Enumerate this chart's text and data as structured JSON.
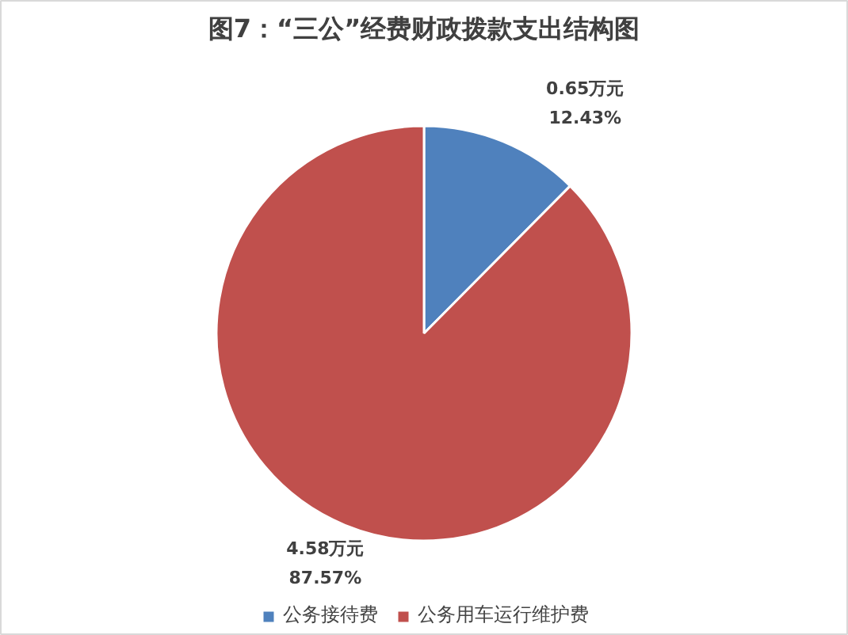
{
  "chart_data": {
    "type": "pie",
    "title": "图7：“三公”经费财政拨款支出结构图",
    "categories": [
      "公务接待费",
      "公务用车运行维护费"
    ],
    "values": [
      0.65,
      4.58
    ],
    "colors": [
      "#4f81bd",
      "#c0504d"
    ],
    "value_labels": [
      "0.65万元\n12.43%",
      "4.58万元\n87.57%"
    ],
    "legend": "bottom"
  }
}
